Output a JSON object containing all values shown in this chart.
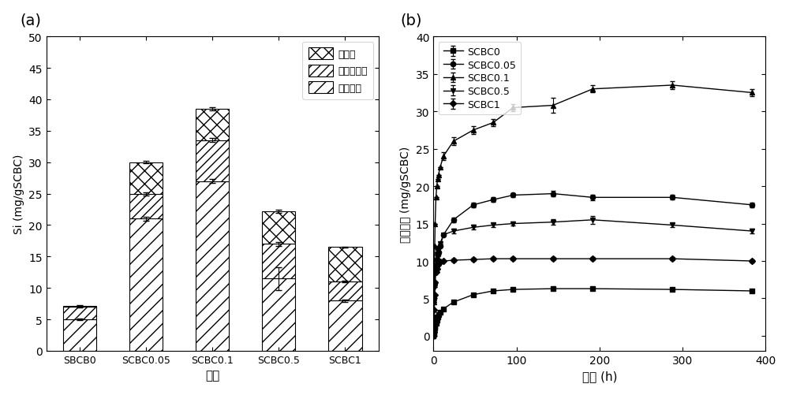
{
  "panel_a": {
    "title": "(a)",
    "categories": [
      "SBCB0",
      "SCBC0.05",
      "SCBC0.1",
      "SCBC0.5",
      "SCBC1"
    ],
    "xlabel": "样品",
    "ylabel": "Si (mg/gSCBC)",
    "ylim": [
      0,
      50
    ],
    "yticks": [
      0,
      5,
      10,
      15,
      20,
      25,
      30,
      35,
      40,
      45,
      50
    ],
    "bar_soluble": [
      5.0,
      21.0,
      27.0,
      11.5,
      8.0
    ],
    "bar_available": [
      2.0,
      4.0,
      6.5,
      5.5,
      3.0
    ],
    "bar_active": [
      0.2,
      5.0,
      5.0,
      5.2,
      5.5
    ],
    "err_soluble": [
      0.15,
      0.3,
      0.3,
      1.8,
      0.2
    ],
    "err_available": [
      0.1,
      0.25,
      0.3,
      0.3,
      0.15
    ],
    "err_active": [
      0.05,
      0.2,
      0.2,
      0.2,
      0.1
    ],
    "legend_labels": [
      "活性硅",
      "可利用性硅",
      "可溶性硅"
    ],
    "hatch_active": "xx",
    "hatch_available": "///",
    "hatch_soluble": "//",
    "facecolor": "white",
    "edgecolor": "black"
  },
  "panel_b": {
    "title": "(b)",
    "xlabel": "时间 (h)",
    "ylabel": "可溶性硅 (mg/gSCBC)",
    "ylim": [
      -2,
      40
    ],
    "yticks": [
      0,
      5,
      10,
      15,
      20,
      25,
      30,
      35,
      40
    ],
    "xlim": [
      0,
      400
    ],
    "xticks": [
      0,
      100,
      200,
      300,
      400
    ],
    "series": {
      "SCBC0": {
        "x": [
          0,
          0.25,
          0.5,
          1,
          1.5,
          2,
          3,
          4,
          5,
          6,
          8,
          12,
          24,
          48,
          72,
          96,
          144,
          192,
          288,
          384
        ],
        "y": [
          0,
          0.2,
          0.4,
          0.7,
          1.0,
          1.3,
          1.7,
          2.1,
          2.5,
          2.8,
          3.2,
          3.6,
          4.5,
          5.5,
          6.0,
          6.2,
          6.3,
          6.3,
          6.2,
          6.0
        ],
        "yerr": [
          0,
          0,
          0,
          0,
          0,
          0,
          0,
          0,
          0,
          0,
          0,
          0,
          0.15,
          0.15,
          0.15,
          0.15,
          0.15,
          0.15,
          0.15,
          0.15
        ],
        "marker": "s"
      },
      "SCBC0.05": {
        "x": [
          0,
          0.25,
          0.5,
          1,
          1.5,
          2,
          3,
          4,
          5,
          6,
          8,
          12,
          24,
          48,
          72,
          96,
          144,
          192,
          288,
          384
        ],
        "y": [
          0,
          1.0,
          2.5,
          5.0,
          7.0,
          8.5,
          9.5,
          10.2,
          10.8,
          11.2,
          12.0,
          13.5,
          15.5,
          17.5,
          18.2,
          18.8,
          19.0,
          18.5,
          18.5,
          17.5
        ],
        "yerr": [
          0,
          0,
          0,
          0,
          0,
          0,
          0,
          0,
          0,
          0,
          0,
          0,
          0.3,
          0.3,
          0.3,
          0.3,
          0.4,
          0.4,
          0.3,
          0.3
        ],
        "marker": "o"
      },
      "SCBC0.1": {
        "x": [
          0,
          0.25,
          0.5,
          1,
          1.5,
          2,
          3,
          4,
          5,
          6,
          8,
          12,
          24,
          48,
          72,
          96,
          144,
          192,
          288,
          384
        ],
        "y": [
          0,
          2.0,
          4.5,
          8.5,
          12.0,
          15.0,
          18.5,
          20.0,
          21.0,
          21.5,
          22.5,
          24.0,
          26.0,
          27.5,
          28.5,
          30.5,
          30.8,
          33.0,
          33.5,
          32.5
        ],
        "yerr": [
          0,
          0,
          0,
          0,
          0,
          0,
          0,
          0,
          0,
          0,
          0,
          0.5,
          0.5,
          0.5,
          0.5,
          0.5,
          1.0,
          0.5,
          0.5,
          0.5
        ],
        "marker": "^"
      },
      "SCBC0.5": {
        "x": [
          0,
          0.25,
          0.5,
          1,
          1.5,
          2,
          3,
          4,
          5,
          6,
          8,
          12,
          24,
          48,
          72,
          96,
          144,
          192,
          288,
          384
        ],
        "y": [
          0,
          0.8,
          2.0,
          4.5,
          6.5,
          8.5,
          10.0,
          10.8,
          11.3,
          11.7,
          12.3,
          13.5,
          14.0,
          14.5,
          14.8,
          15.0,
          15.2,
          15.5,
          14.8,
          14.0
        ],
        "yerr": [
          0,
          0,
          0,
          0,
          0,
          0,
          0,
          0,
          0,
          0,
          0,
          0,
          0.3,
          0.3,
          0.3,
          0.3,
          0.4,
          0.5,
          0.3,
          0.3
        ],
        "marker": "v"
      },
      "SCBC1": {
        "x": [
          0,
          0.25,
          0.5,
          1,
          1.5,
          2,
          3,
          4,
          5,
          6,
          8,
          12,
          24,
          48,
          72,
          96,
          144,
          192,
          288,
          384
        ],
        "y": [
          0,
          0.5,
          1.5,
          3.5,
          5.5,
          7.2,
          8.5,
          9.0,
          9.5,
          9.7,
          9.9,
          10.0,
          10.1,
          10.2,
          10.3,
          10.3,
          10.3,
          10.3,
          10.3,
          10.0
        ],
        "yerr": [
          0,
          0,
          0,
          0,
          0,
          0,
          0,
          0,
          0,
          0,
          0,
          0,
          0.2,
          0.2,
          0.2,
          0.2,
          0.2,
          0.2,
          0.2,
          0.2
        ],
        "marker": "D"
      }
    }
  }
}
